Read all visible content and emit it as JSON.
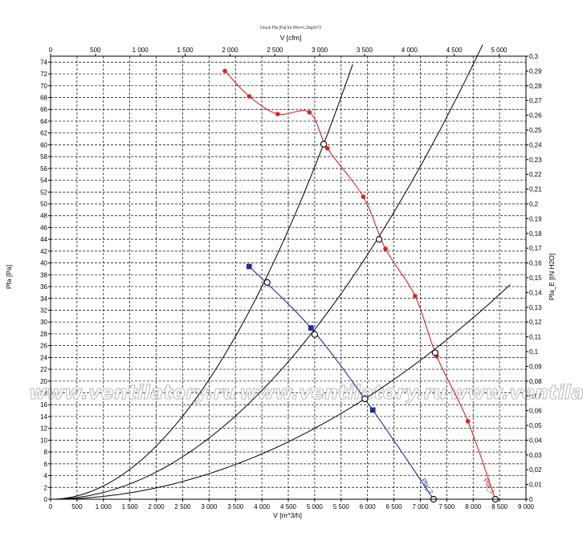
{
  "chart_data": {
    "type": "line",
    "title": "Druck Pfa [Pa] für Rho=1,2kg/m^3",
    "xlabel": "V [m^3/h]",
    "x2label": "V [cfm]",
    "ylabel": "Pfa [Pa]",
    "y2label": "Pfa_E [IN H2O]",
    "xlim": [
      0,
      9000
    ],
    "x2lim": [
      0,
      5300
    ],
    "ylim": [
      0,
      75
    ],
    "y2lim": [
      0,
      0.3
    ],
    "x_ticks": [
      "0",
      "500",
      "1 000",
      "1 500",
      "2 000",
      "2 500",
      "3 000",
      "3 500",
      "4 000",
      "4 500",
      "5 000",
      "5 500",
      "6 000",
      "6 500",
      "7 000",
      "7 500",
      "8 000",
      "8 500",
      "9 000"
    ],
    "x2_ticks": [
      "0",
      "500",
      "1 000",
      "1 500",
      "2 000",
      "2 500",
      "3 000",
      "3 500",
      "4 000",
      "4 500",
      "5 000"
    ],
    "y_ticks": [
      "0",
      "2",
      "4",
      "6",
      "8",
      "10",
      "12",
      "14",
      "16",
      "18",
      "20",
      "22",
      "24",
      "26",
      "28",
      "30",
      "32",
      "34",
      "36",
      "38",
      "40",
      "42",
      "44",
      "46",
      "48",
      "50",
      "52",
      "54",
      "56",
      "58",
      "60",
      "62",
      "64",
      "66",
      "68",
      "70",
      "72",
      "74"
    ],
    "y2_ticks": [
      "0",
      "0,01",
      "0,02",
      "0,03",
      "0,04",
      "0,05",
      "0,06",
      "0,07",
      "0,08",
      "0,09",
      "0,1",
      "0,11",
      "0,12",
      "0,13",
      "0,14",
      "0,15",
      "0,16",
      "0,17",
      "0,18",
      "0,19",
      "0,2",
      "0,21",
      "0,22",
      "0,23",
      "0,24",
      "0,25",
      "0,26",
      "0,27",
      "0,28",
      "0,29",
      "0,3"
    ],
    "grid": true,
    "series": [
      {
        "name": "Pfa_1",
        "color": "#dd2222",
        "marker": "circle",
        "points": [
          [
            3300,
            72.5
          ],
          [
            3760,
            68.2
          ],
          [
            4300,
            65.2
          ],
          [
            4900,
            65.5
          ],
          [
            5240,
            59.4
          ],
          [
            5920,
            51.2
          ],
          [
            6340,
            42.4
          ],
          [
            6900,
            34.4
          ],
          [
            7310,
            24.2
          ],
          [
            7900,
            13.2
          ],
          [
            8420,
            0
          ]
        ]
      },
      {
        "name": "Pfa_2",
        "color": "#1e2ea8",
        "marker": "square",
        "points": [
          [
            3760,
            39.4
          ],
          [
            4930,
            29.0
          ],
          [
            6100,
            15.1
          ],
          [
            7250,
            0
          ]
        ]
      }
    ],
    "system_curves": [
      {
        "k": 2.25e-06,
        "x_max": 5720
      },
      {
        "k": 1.15e-06,
        "x_max": 8180
      },
      {
        "k": 4.8e-07,
        "x_max": 8700
      }
    ],
    "intersections": [
      [
        4100,
        36.7
      ],
      [
        5170,
        60.1
      ],
      [
        5000,
        27.9
      ],
      [
        6220,
        44.0
      ],
      [
        5950,
        17.0
      ],
      [
        7280,
        24.8
      ],
      [
        7250,
        0
      ],
      [
        8420,
        0
      ]
    ],
    "watermark": "www.ventilatory.ru"
  }
}
